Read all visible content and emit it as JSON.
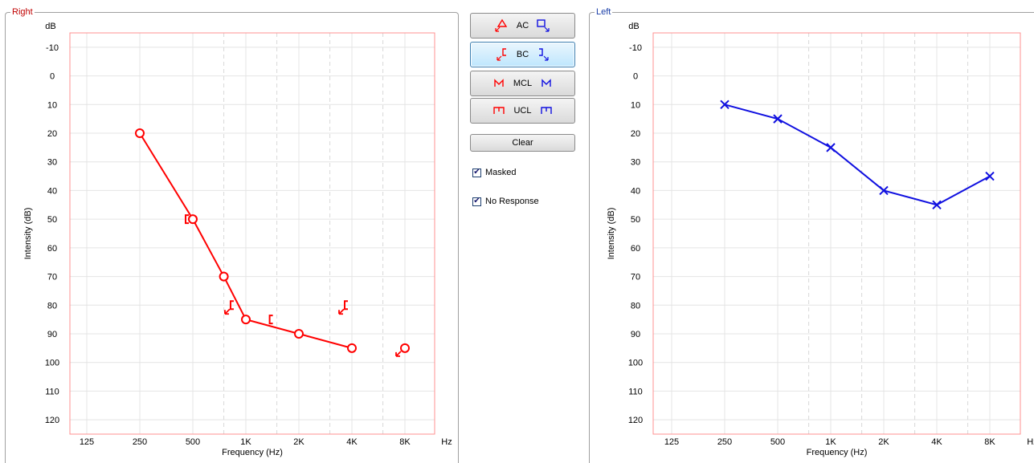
{
  "right_panel": {
    "title": "Right",
    "title_color": "#c00000"
  },
  "left_panel": {
    "title": "Left",
    "title_color": "#1a3ea8"
  },
  "buttons": {
    "ac": "AC",
    "bc": "BC",
    "mcl": "MCL",
    "ucl": "UCL",
    "clear": "Clear",
    "active": "bc"
  },
  "checkboxes": {
    "masked": {
      "label": "Masked",
      "checked": true
    },
    "no_response": {
      "label": "No Response",
      "checked": true
    }
  },
  "colors": {
    "right_ear": "#ff0000",
    "left_ear": "#1010e0",
    "plot_border": "#ff8080",
    "grid": "#e0e0e0"
  },
  "chart_data": [
    {
      "type": "line",
      "panel": "Right",
      "x_tick_labels": [
        "125",
        "250",
        "500",
        "1K",
        "2K",
        "4K",
        "8K"
      ],
      "x_unit": "Hz",
      "y_unit": "dB",
      "x_label": "Frequency (Hz)",
      "y_label": "Intensity (dB)",
      "y_ticks": [
        -10,
        0,
        10,
        20,
        30,
        40,
        50,
        60,
        70,
        80,
        90,
        100,
        110,
        120
      ],
      "y_range": [
        -15,
        125
      ],
      "y_reversed": true,
      "x_scale": "log2",
      "series": [
        {
          "symbol": "circle",
          "points": [
            [
              250,
              20
            ],
            [
              500,
              50
            ],
            [
              750,
              70
            ],
            [
              1000,
              85
            ],
            [
              2000,
              90
            ],
            [
              4000,
              95
            ]
          ]
        },
        {
          "symbol": "circle-no-response",
          "points": [
            [
              8000,
              95
            ]
          ]
        },
        {
          "symbol": "bc-masked-bracket",
          "points": [
            [
              500,
              50
            ],
            [
              1500,
              85
            ]
          ]
        },
        {
          "symbol": "bc-masked-bracket-no-response",
          "points": [
            [
              900,
              80
            ],
            [
              4000,
              80
            ]
          ]
        }
      ]
    },
    {
      "type": "line",
      "panel": "Left",
      "x_tick_labels": [
        "125",
        "250",
        "500",
        "1K",
        "2K",
        "4K",
        "8K"
      ],
      "x_unit": "Hz",
      "y_unit": "dB",
      "x_label": "Frequency (Hz)",
      "y_label": "Intensity (dB)",
      "y_ticks": [
        -10,
        0,
        10,
        20,
        30,
        40,
        50,
        60,
        70,
        80,
        90,
        100,
        110,
        120
      ],
      "y_range": [
        -15,
        125
      ],
      "y_reversed": true,
      "x_scale": "log2",
      "series": [
        {
          "symbol": "x",
          "points": [
            [
              250,
              10
            ],
            [
              500,
              15
            ],
            [
              1000,
              25
            ],
            [
              2000,
              40
            ],
            [
              4000,
              45
            ],
            [
              8000,
              35
            ]
          ]
        }
      ]
    }
  ]
}
